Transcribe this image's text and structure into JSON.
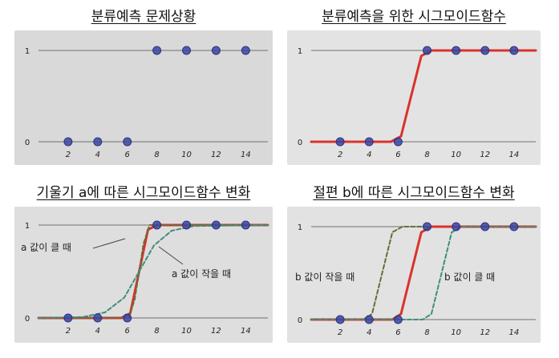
{
  "chart_data": [
    {
      "type": "scatter",
      "title": "분류예측 문제상황",
      "x_ticks": [
        "2",
        "4",
        "6",
        "8",
        "10",
        "12",
        "14"
      ],
      "y_ticks": [
        "0",
        "1"
      ],
      "points": [
        [
          2,
          0
        ],
        [
          4,
          0
        ],
        [
          6,
          0
        ],
        [
          8,
          1
        ],
        [
          10,
          1
        ],
        [
          12,
          1
        ],
        [
          14,
          1
        ]
      ],
      "xlim": [
        0,
        15.5
      ],
      "ylim": [
        0,
        1
      ],
      "grid": "y at 0 and 1"
    },
    {
      "type": "line",
      "title": "분류예측을 위한 시그모이드함수",
      "x_ticks": [
        "2",
        "4",
        "6",
        "8",
        "10",
        "12",
        "14"
      ],
      "y_ticks": [
        "0",
        "1"
      ],
      "points": [
        [
          2,
          0
        ],
        [
          4,
          0
        ],
        [
          6,
          0
        ],
        [
          8,
          1
        ],
        [
          10,
          1
        ],
        [
          12,
          1
        ],
        [
          14,
          1
        ]
      ],
      "series": [
        {
          "values": [
            [
              0,
              0
            ],
            [
              5.5,
              0
            ],
            [
              6.2,
              0.06
            ],
            [
              6.9,
              0.5
            ],
            [
              7.6,
              0.94
            ],
            [
              8.3,
              1
            ],
            [
              15.5,
              1
            ]
          ],
          "color": "#d9332b"
        }
      ],
      "xlim": [
        0,
        15.5
      ],
      "ylim": [
        0,
        1
      ]
    },
    {
      "type": "line",
      "title": "기울기 a에 따른 시그모이드함수 변화",
      "x_ticks": [
        "2",
        "4",
        "6",
        "8",
        "10",
        "12",
        "14"
      ],
      "y_ticks": [
        "0",
        "1"
      ],
      "points": [
        [
          2,
          0
        ],
        [
          4,
          0
        ],
        [
          6,
          0
        ],
        [
          8,
          1
        ],
        [
          10,
          1
        ],
        [
          12,
          1
        ],
        [
          14,
          1
        ]
      ],
      "series": [
        {
          "values": [
            [
              0,
              0
            ],
            [
              5.6,
              0
            ],
            [
              6.2,
              0.05
            ],
            [
              6.8,
              0.5
            ],
            [
              7.4,
              0.95
            ],
            [
              8.0,
              1
            ],
            [
              15.5,
              1
            ]
          ],
          "color": "#d9332b"
        },
        {
          "values": [
            [
              0,
              0
            ],
            [
              6.1,
              0
            ],
            [
              6.5,
              0.2
            ],
            [
              6.8,
              0.5
            ],
            [
              7.1,
              0.8
            ],
            [
              7.5,
              1
            ],
            [
              15.5,
              1
            ]
          ],
          "color": "#6b6b3a"
        },
        {
          "values": [
            [
              0,
              0
            ],
            [
              3,
              0.01
            ],
            [
              4.5,
              0.06
            ],
            [
              5.8,
              0.22
            ],
            [
              6.8,
              0.5
            ],
            [
              7.8,
              0.78
            ],
            [
              9,
              0.94
            ],
            [
              10.5,
              0.99
            ],
            [
              15.5,
              1
            ]
          ],
          "color": "#3f8f7a"
        }
      ],
      "annotations": [
        "a 값이 클 때",
        "a 값이 작을 때"
      ],
      "xlim": [
        0,
        15.5
      ],
      "ylim": [
        0,
        1
      ]
    },
    {
      "type": "line",
      "title": "절편 b에 따른 시그모이드함수 변화",
      "x_ticks": [
        "2",
        "4",
        "6",
        "8",
        "10",
        "12",
        "14"
      ],
      "y_ticks": [
        "0",
        "1"
      ],
      "points": [
        [
          2,
          0
        ],
        [
          4,
          0
        ],
        [
          6,
          0
        ],
        [
          8,
          1
        ],
        [
          10,
          1
        ],
        [
          12,
          1
        ],
        [
          14,
          1
        ]
      ],
      "series": [
        {
          "values": [
            [
              0,
              0
            ],
            [
              3.6,
              0
            ],
            [
              4.2,
              0.06
            ],
            [
              4.9,
              0.5
            ],
            [
              5.6,
              0.94
            ],
            [
              6.3,
              1
            ],
            [
              15.5,
              1
            ]
          ],
          "color": "#6b6b3a"
        },
        {
          "values": [
            [
              0,
              0
            ],
            [
              5.6,
              0
            ],
            [
              6.2,
              0.06
            ],
            [
              6.9,
              0.5
            ],
            [
              7.6,
              0.94
            ],
            [
              8.3,
              1
            ],
            [
              15.5,
              1
            ]
          ],
          "color": "#d9332b"
        },
        {
          "values": [
            [
              0,
              0
            ],
            [
              7.7,
              0
            ],
            [
              8.3,
              0.06
            ],
            [
              9.0,
              0.5
            ],
            [
              9.7,
              0.94
            ],
            [
              10.4,
              1
            ],
            [
              15.5,
              1
            ]
          ],
          "color": "#3f8f7a"
        }
      ],
      "annotations": [
        "b 값이 작을 때",
        "b 값이 클 때"
      ],
      "xlim": [
        0,
        15.5
      ],
      "ylim": [
        0,
        1
      ]
    }
  ],
  "colors": {
    "point": "#3a45a0",
    "paper": "#dcdcdc",
    "axis": "#707070"
  }
}
